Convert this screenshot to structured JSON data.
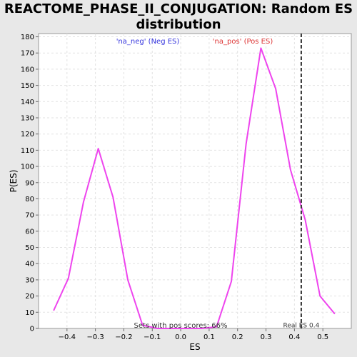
{
  "chart_data": {
    "type": "line",
    "title": "REACTOME_PHASE_II_CONJUGATION: Random ES distribution",
    "xlabel": "ES",
    "ylabel": "P(ES)",
    "xlim": [
      -0.5,
      0.6
    ],
    "ylim": [
      0,
      182
    ],
    "x_ticks": [
      -0.4,
      -0.3,
      -0.2,
      -0.1,
      0.0,
      0.1,
      0.2,
      0.3,
      0.4,
      0.5
    ],
    "x_tick_labels": [
      "−0.4",
      "−0.3",
      "−0.2",
      "−0.1",
      "0.0",
      "0.1",
      "0.2",
      "0.3",
      "0.4",
      "0.5"
    ],
    "y_ticks": [
      0,
      10,
      20,
      30,
      40,
      50,
      60,
      70,
      80,
      90,
      100,
      110,
      120,
      130,
      140,
      150,
      160,
      170,
      180
    ],
    "grid": true,
    "series": [
      {
        "color": "#ee44ee",
        "x": [
          -0.447,
          -0.395,
          -0.342,
          -0.29,
          -0.238,
          -0.186,
          -0.134,
          -0.082,
          -0.03,
          0.022,
          0.074,
          0.126,
          0.178,
          0.23,
          0.282,
          0.334,
          0.386,
          0.438,
          0.49,
          0.542
        ],
        "y": [
          11,
          31,
          78,
          111,
          81,
          30,
          2,
          0,
          0,
          0,
          0,
          1,
          29,
          114,
          173,
          148,
          98,
          67,
          20,
          9
        ]
      }
    ],
    "legend": [
      {
        "label": "'na_neg' (Neg ES)",
        "color": "#3333dd",
        "position": "top-left"
      },
      {
        "label": "'na_pos' (Pos ES)",
        "color": "#dd3333",
        "position": "top-center"
      }
    ],
    "real_es": {
      "value": 0.424,
      "label": "Real ES 0.4"
    },
    "annotation": "Sets with pos scores: 66%"
  }
}
